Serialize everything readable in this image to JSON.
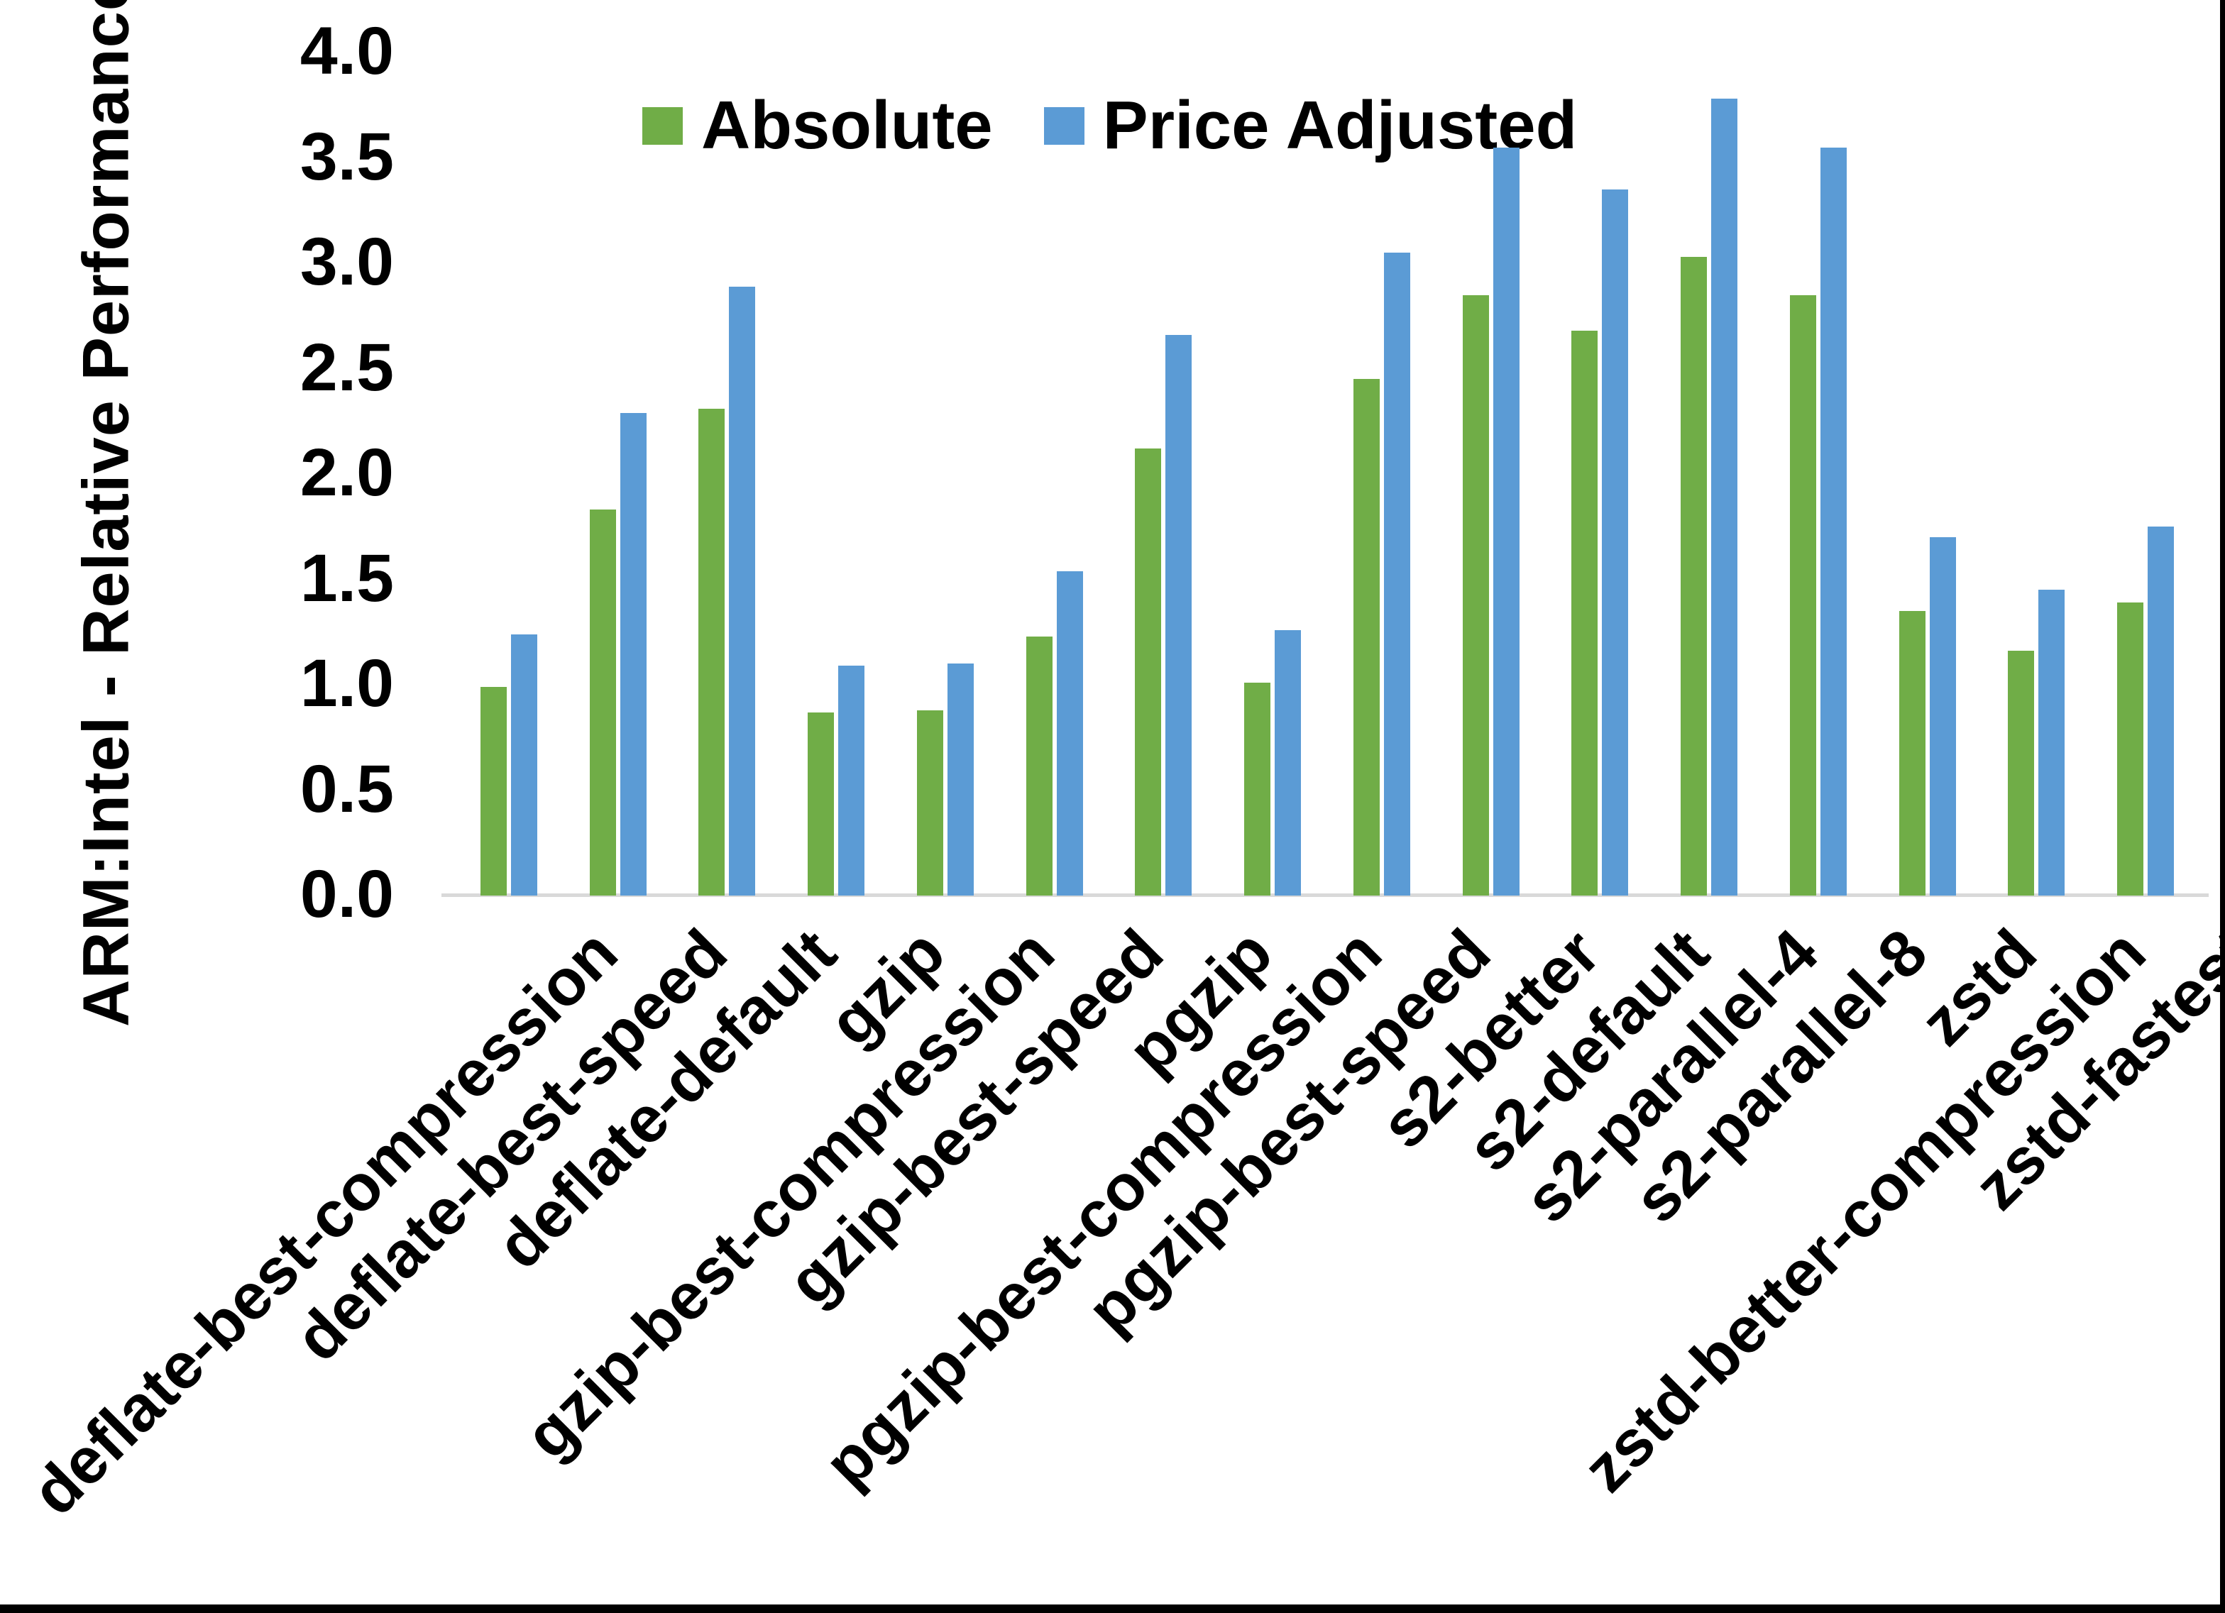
{
  "page": {
    "background": "#ffffff",
    "frame_color": "#000000"
  },
  "chart_data": {
    "type": "bar",
    "title": "",
    "xlabel": "",
    "ylabel": "ARM:Intel - Relative Performance",
    "ylim": [
      0.0,
      4.0
    ],
    "ytick_step": 0.5,
    "yticks": [
      "0.0",
      "0.5",
      "1.0",
      "1.5",
      "2.0",
      "2.5",
      "3.0",
      "3.5",
      "4.0"
    ],
    "grid": false,
    "legend_position": "top-center",
    "axis_line_color": "#d9d9d9",
    "text_color": "#000000",
    "categories": [
      "deflate-best-compression",
      "deflate-best-speed",
      "deflate-default",
      "gzip",
      "gzip-best-compression",
      "gzip-best-speed",
      "pgzip",
      "pgzip-best-compression",
      "pgzip-best-speed",
      "s2-better",
      "s2-default",
      "s2-parallel-4",
      "s2-parallel-8",
      "zstd",
      "zstd-better-compression",
      "zstd-fastest"
    ],
    "series": [
      {
        "name": "Absolute",
        "color": "#70ad47",
        "values": [
          0.99,
          1.83,
          2.31,
          0.87,
          0.88,
          1.23,
          2.12,
          1.01,
          2.45,
          2.85,
          2.68,
          3.03,
          2.85,
          1.35,
          1.16,
          1.39
        ]
      },
      {
        "name": "Price Adjusted",
        "color": "#5b9bd5",
        "values": [
          1.24,
          2.29,
          2.89,
          1.09,
          1.1,
          1.54,
          2.66,
          1.26,
          3.05,
          3.55,
          3.35,
          3.78,
          3.55,
          1.7,
          1.45,
          1.75
        ]
      }
    ]
  }
}
